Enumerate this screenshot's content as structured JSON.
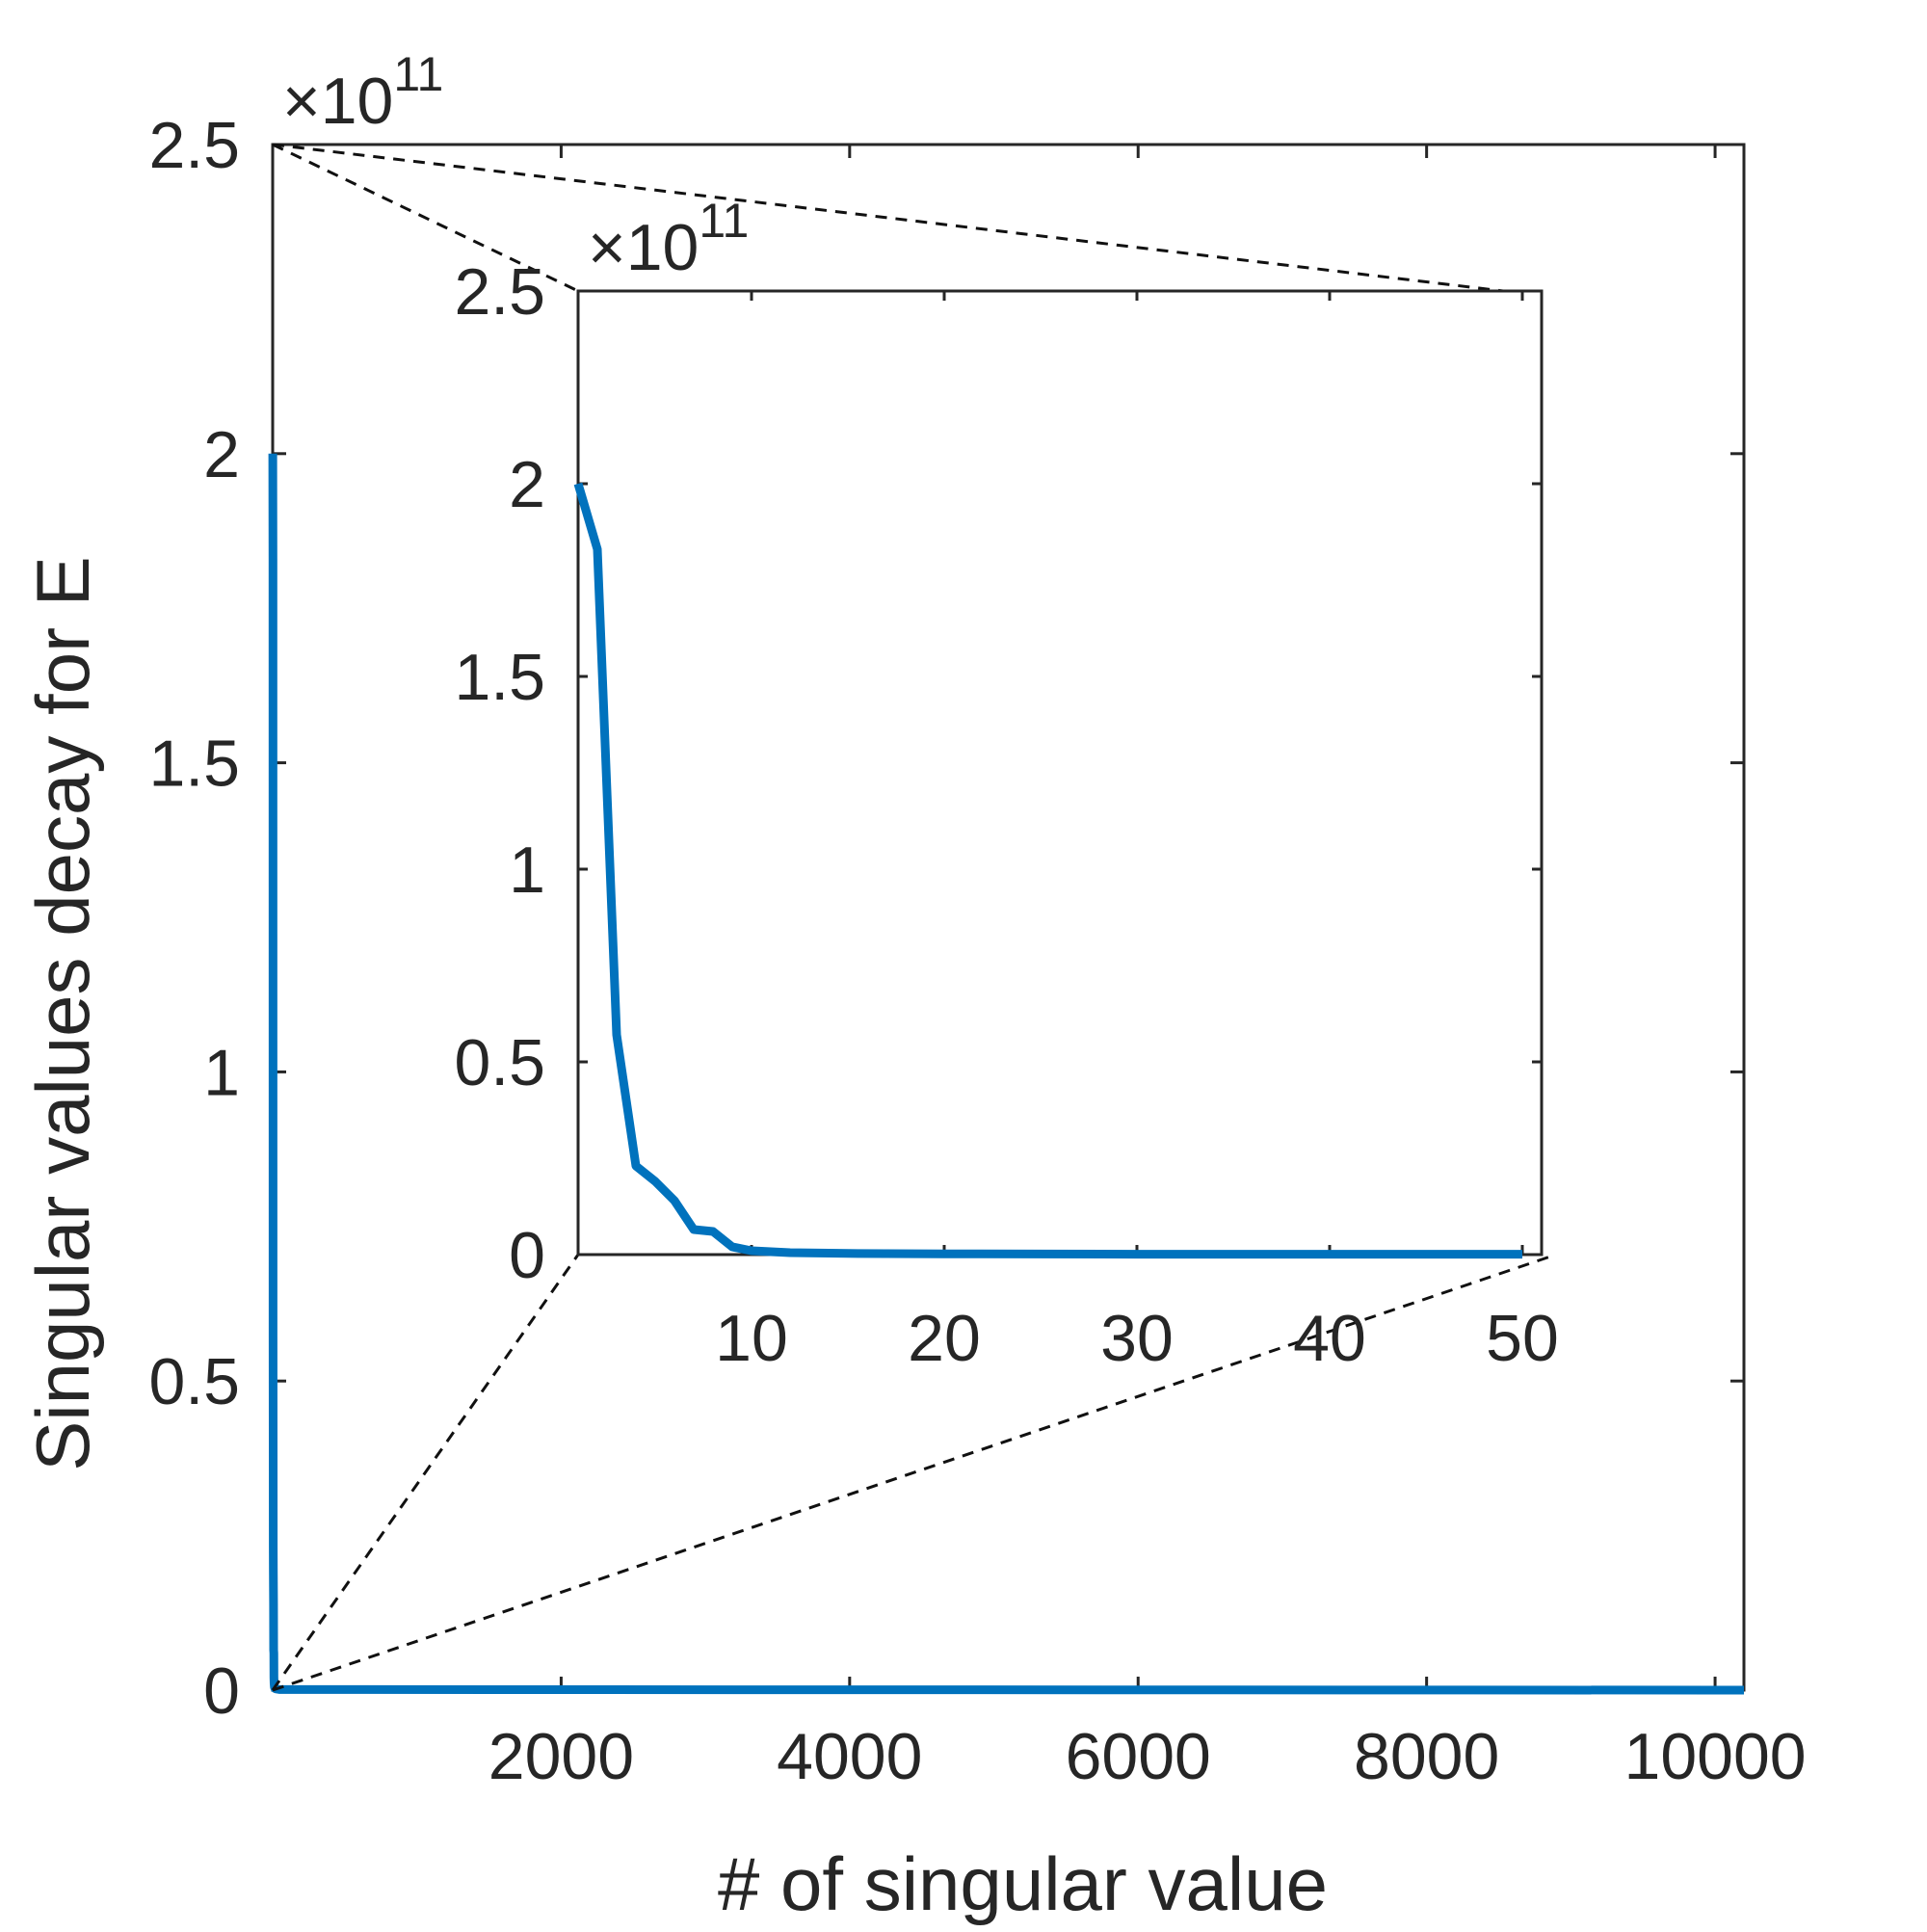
{
  "chart_data": [
    {
      "type": "line",
      "role": "main",
      "xlabel": "# of singular value",
      "ylabel": "Singular values decay for E",
      "xlim": [
        0,
        10200
      ],
      "ylim": [
        0,
        2.5
      ],
      "y_exponent_prefix": "×10",
      "y_exponent_power": "11",
      "xticks": [
        2000,
        4000,
        6000,
        8000,
        10000
      ],
      "xtick_labels": [
        "2000",
        "4000",
        "6000",
        "8000",
        "10000"
      ],
      "yticks": [
        0,
        0.5,
        1,
        1.5,
        2,
        2.5
      ],
      "ytick_labels": [
        "0",
        "0.5",
        "1",
        "1.5",
        "2",
        "2.5"
      ],
      "grid": false,
      "line_color": "#0072BD",
      "series": [
        {
          "x": [
            1,
            2,
            3,
            4,
            5,
            6,
            7,
            8,
            9,
            10,
            12,
            15,
            20,
            50,
            10200
          ],
          "values": [
            2.0,
            1.83,
            0.57,
            0.23,
            0.19,
            0.14,
            0.065,
            0.06,
            0.02,
            0.01,
            0.005,
            0.003,
            0.002,
            0.001,
            0.0
          ]
        }
      ]
    },
    {
      "type": "line",
      "role": "inset",
      "xlim": [
        1,
        51
      ],
      "ylim": [
        0,
        2.5
      ],
      "y_exponent_prefix": "×10",
      "y_exponent_power": "11",
      "xticks": [
        10,
        20,
        30,
        40,
        50
      ],
      "xtick_labels": [
        "10",
        "20",
        "30",
        "40",
        "50"
      ],
      "yticks": [
        0,
        0.5,
        1,
        1.5,
        2,
        2.5
      ],
      "ytick_labels": [
        "0",
        "0.5",
        "1",
        "1.5",
        "2",
        "2.5"
      ],
      "grid": false,
      "line_color": "#0072BD",
      "series": [
        {
          "x": [
            1,
            2,
            3,
            4,
            5,
            6,
            7,
            8,
            9,
            10,
            12,
            15,
            20,
            30,
            40,
            50
          ],
          "values": [
            2.0,
            1.83,
            0.57,
            0.23,
            0.19,
            0.14,
            0.065,
            0.06,
            0.02,
            0.01,
            0.005,
            0.003,
            0.002,
            0.001,
            0.001,
            0.001
          ]
        }
      ]
    }
  ]
}
